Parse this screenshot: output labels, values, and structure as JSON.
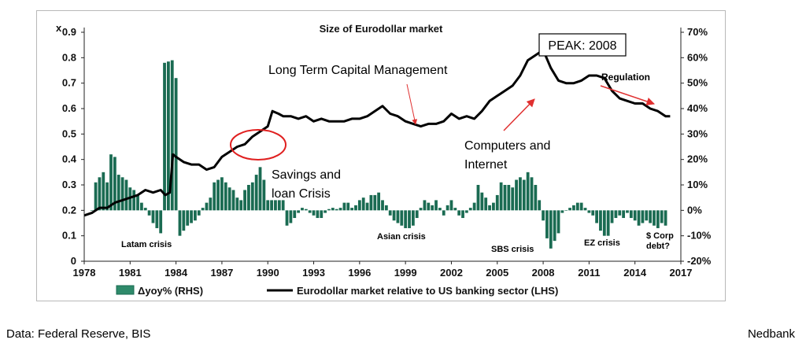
{
  "chart_data": {
    "type": "bar+line",
    "title": "Size of Eurodollar market",
    "left_axis": {
      "unit_label": "x",
      "ylim": [
        0,
        0.9
      ],
      "ticks": [
        "0",
        "0.1",
        "0.2",
        "0.3",
        "0.4",
        "0.5",
        "0.6",
        "0.7",
        "0.8",
        "0.9"
      ]
    },
    "right_axis": {
      "ylim": [
        -20,
        70
      ],
      "ticks": [
        "-20%",
        "-10%",
        "0%",
        "10%",
        "20%",
        "30%",
        "40%",
        "50%",
        "60%",
        "70%"
      ]
    },
    "x_axis": {
      "xlim": [
        1978,
        2017
      ],
      "ticks": [
        "1978",
        "1981",
        "1984",
        "1987",
        "1990",
        "1993",
        "1996",
        "1999",
        "2002",
        "2005",
        "2008",
        "2011",
        "2014",
        "2017"
      ]
    },
    "legend": {
      "placement": "bottom",
      "items": [
        "Δyoy% (RHS)",
        "Eurodollar market relative to US banking sector (LHS)"
      ]
    },
    "series": [
      {
        "name": "Eurodollar market relative to US banking sector (LHS)",
        "type": "line",
        "axis": "left",
        "color": "#000000",
        "points": [
          [
            1978.0,
            0.18
          ],
          [
            1978.5,
            0.19
          ],
          [
            1979.0,
            0.21
          ],
          [
            1979.5,
            0.21
          ],
          [
            1980.0,
            0.23
          ],
          [
            1980.5,
            0.24
          ],
          [
            1981.0,
            0.25
          ],
          [
            1981.5,
            0.26
          ],
          [
            1982.0,
            0.28
          ],
          [
            1982.5,
            0.27
          ],
          [
            1983.0,
            0.28
          ],
          [
            1983.3,
            0.26
          ],
          [
            1983.6,
            0.27
          ],
          [
            1983.8,
            0.42
          ],
          [
            1984.0,
            0.41
          ],
          [
            1984.5,
            0.39
          ],
          [
            1985.0,
            0.38
          ],
          [
            1985.5,
            0.38
          ],
          [
            1986.0,
            0.36
          ],
          [
            1986.5,
            0.37
          ],
          [
            1987.0,
            0.41
          ],
          [
            1987.5,
            0.43
          ],
          [
            1988.0,
            0.45
          ],
          [
            1988.5,
            0.46
          ],
          [
            1989.0,
            0.49
          ],
          [
            1989.5,
            0.51
          ],
          [
            1990.0,
            0.53
          ],
          [
            1990.3,
            0.59
          ],
          [
            1990.7,
            0.58
          ],
          [
            1991.0,
            0.57
          ],
          [
            1991.5,
            0.57
          ],
          [
            1992.0,
            0.56
          ],
          [
            1992.5,
            0.57
          ],
          [
            1993.0,
            0.55
          ],
          [
            1993.5,
            0.56
          ],
          [
            1994.0,
            0.55
          ],
          [
            1995.0,
            0.55
          ],
          [
            1995.5,
            0.56
          ],
          [
            1996.0,
            0.56
          ],
          [
            1996.5,
            0.57
          ],
          [
            1997.0,
            0.59
          ],
          [
            1997.5,
            0.61
          ],
          [
            1998.0,
            0.58
          ],
          [
            1998.5,
            0.57
          ],
          [
            1999.0,
            0.55
          ],
          [
            1999.5,
            0.54
          ],
          [
            2000.0,
            0.53
          ],
          [
            2000.5,
            0.54
          ],
          [
            2001.0,
            0.54
          ],
          [
            2001.5,
            0.55
          ],
          [
            2002.0,
            0.58
          ],
          [
            2002.5,
            0.56
          ],
          [
            2003.0,
            0.57
          ],
          [
            2003.5,
            0.56
          ],
          [
            2004.0,
            0.59
          ],
          [
            2004.5,
            0.63
          ],
          [
            2005.0,
            0.65
          ],
          [
            2005.5,
            0.67
          ],
          [
            2006.0,
            0.69
          ],
          [
            2006.5,
            0.73
          ],
          [
            2007.0,
            0.79
          ],
          [
            2007.5,
            0.81
          ],
          [
            2008.0,
            0.83
          ],
          [
            2008.5,
            0.76
          ],
          [
            2009.0,
            0.71
          ],
          [
            2009.5,
            0.7
          ],
          [
            2010.0,
            0.7
          ],
          [
            2010.5,
            0.71
          ],
          [
            2011.0,
            0.73
          ],
          [
            2011.5,
            0.73
          ],
          [
            2012.0,
            0.72
          ],
          [
            2012.5,
            0.67
          ],
          [
            2013.0,
            0.64
          ],
          [
            2013.5,
            0.63
          ],
          [
            2014.0,
            0.62
          ],
          [
            2014.5,
            0.62
          ],
          [
            2015.0,
            0.6
          ],
          [
            2015.5,
            0.59
          ],
          [
            2016.0,
            0.57
          ],
          [
            2016.3,
            0.57
          ]
        ]
      },
      {
        "name": "Δyoy% (RHS)",
        "type": "bar",
        "axis": "right",
        "color": "#1a6b52",
        "points": [
          [
            1978.5,
            0
          ],
          [
            1978.75,
            11
          ],
          [
            1979.0,
            13
          ],
          [
            1979.25,
            15
          ],
          [
            1979.5,
            11
          ],
          [
            1979.75,
            22
          ],
          [
            1980.0,
            21
          ],
          [
            1980.25,
            14
          ],
          [
            1980.5,
            13
          ],
          [
            1980.75,
            12
          ],
          [
            1981.0,
            9
          ],
          [
            1981.25,
            8
          ],
          [
            1981.5,
            6
          ],
          [
            1981.75,
            3
          ],
          [
            1982.0,
            1
          ],
          [
            1982.25,
            -2
          ],
          [
            1982.5,
            -5
          ],
          [
            1982.75,
            -7
          ],
          [
            1983.0,
            -9
          ],
          [
            1983.25,
            58
          ],
          [
            1983.5,
            58.5
          ],
          [
            1983.75,
            59
          ],
          [
            1984.0,
            52
          ],
          [
            1984.25,
            -10
          ],
          [
            1984.5,
            -8
          ],
          [
            1984.75,
            -6
          ],
          [
            1985.0,
            -5
          ],
          [
            1985.25,
            -4
          ],
          [
            1985.5,
            -2
          ],
          [
            1985.75,
            1
          ],
          [
            1986.0,
            3
          ],
          [
            1986.25,
            5
          ],
          [
            1986.5,
            11
          ],
          [
            1986.75,
            12
          ],
          [
            1987.0,
            13
          ],
          [
            1987.25,
            11
          ],
          [
            1987.5,
            9
          ],
          [
            1987.75,
            8
          ],
          [
            1988.0,
            5
          ],
          [
            1988.25,
            4
          ],
          [
            1988.5,
            8
          ],
          [
            1988.75,
            10
          ],
          [
            1989.0,
            11
          ],
          [
            1989.25,
            14
          ],
          [
            1989.5,
            17
          ],
          [
            1989.75,
            12
          ],
          [
            1990.0,
            4
          ],
          [
            1990.25,
            4
          ],
          [
            1990.5,
            4
          ],
          [
            1990.75,
            4
          ],
          [
            1991.0,
            4
          ],
          [
            1991.25,
            -6
          ],
          [
            1991.5,
            -5
          ],
          [
            1991.75,
            -3
          ],
          [
            1992.0,
            -1
          ],
          [
            1992.25,
            1
          ],
          [
            1992.5,
            0.5
          ],
          [
            1992.75,
            -1
          ],
          [
            1993.0,
            -2
          ],
          [
            1993.25,
            -3
          ],
          [
            1993.5,
            -3
          ],
          [
            1993.75,
            -1
          ],
          [
            1994.0,
            0.5
          ],
          [
            1994.25,
            1
          ],
          [
            1994.5,
            0.5
          ],
          [
            1994.75,
            1
          ],
          [
            1995.0,
            3
          ],
          [
            1995.25,
            3
          ],
          [
            1995.5,
            1
          ],
          [
            1995.75,
            2
          ],
          [
            1996.0,
            4
          ],
          [
            1996.25,
            5
          ],
          [
            1996.5,
            3
          ],
          [
            1996.75,
            6
          ],
          [
            1997.0,
            6
          ],
          [
            1997.25,
            7
          ],
          [
            1997.5,
            4
          ],
          [
            1997.75,
            2
          ],
          [
            1998.0,
            -2
          ],
          [
            1998.25,
            -4
          ],
          [
            1998.5,
            -5
          ],
          [
            1998.75,
            -6
          ],
          [
            1999.0,
            -7
          ],
          [
            1999.25,
            -7
          ],
          [
            1999.5,
            -6
          ],
          [
            1999.75,
            -3
          ],
          [
            2000.0,
            1
          ],
          [
            2000.25,
            4
          ],
          [
            2000.5,
            3
          ],
          [
            2000.75,
            2
          ],
          [
            2001.0,
            4
          ],
          [
            2001.25,
            1
          ],
          [
            2001.5,
            -2
          ],
          [
            2001.75,
            2
          ],
          [
            2002.0,
            4
          ],
          [
            2002.25,
            1
          ],
          [
            2002.5,
            -2
          ],
          [
            2002.75,
            -3
          ],
          [
            2003.0,
            -1
          ],
          [
            2003.25,
            1
          ],
          [
            2003.5,
            3
          ],
          [
            2003.75,
            10
          ],
          [
            2004.0,
            7
          ],
          [
            2004.25,
            5
          ],
          [
            2004.5,
            2
          ],
          [
            2004.75,
            3
          ],
          [
            2005.0,
            6
          ],
          [
            2005.25,
            11
          ],
          [
            2005.5,
            10
          ],
          [
            2005.75,
            10
          ],
          [
            2006.0,
            9
          ],
          [
            2006.25,
            12
          ],
          [
            2006.5,
            13
          ],
          [
            2006.75,
            12
          ],
          [
            2007.0,
            15
          ],
          [
            2007.25,
            13
          ],
          [
            2007.5,
            10
          ],
          [
            2007.75,
            4
          ],
          [
            2008.0,
            -4
          ],
          [
            2008.25,
            -11
          ],
          [
            2008.5,
            -15
          ],
          [
            2008.75,
            -12
          ],
          [
            2009.0,
            -9
          ],
          [
            2009.25,
            -1
          ],
          [
            2009.5,
            0
          ],
          [
            2009.75,
            1
          ],
          [
            2010.0,
            2
          ],
          [
            2010.25,
            3
          ],
          [
            2010.5,
            3
          ],
          [
            2010.75,
            1
          ],
          [
            2011.0,
            -1
          ],
          [
            2011.25,
            -2
          ],
          [
            2011.5,
            -5
          ],
          [
            2011.75,
            -8
          ],
          [
            2012.0,
            -10
          ],
          [
            2012.25,
            -10
          ],
          [
            2012.5,
            -5
          ],
          [
            2012.75,
            -3
          ],
          [
            2013.0,
            -2
          ],
          [
            2013.25,
            -3
          ],
          [
            2013.5,
            -1
          ],
          [
            2013.75,
            -3
          ],
          [
            2014.0,
            -4
          ],
          [
            2014.25,
            -6
          ],
          [
            2014.5,
            -5
          ],
          [
            2014.75,
            -4
          ],
          [
            2015.0,
            -5
          ],
          [
            2015.25,
            -6
          ],
          [
            2015.5,
            -7
          ],
          [
            2015.75,
            -5
          ],
          [
            2016.0,
            -6
          ]
        ]
      }
    ],
    "annotations": {
      "peak": "PEAK: 2008",
      "ltcm": "Long Term Capital Management",
      "regulation": "Regulation",
      "computers_1": "Computers and",
      "computers_2": "Internet",
      "savings_1": "Savings and",
      "savings_2": "loan Crisis",
      "latam": "Latam crisis",
      "asian": "Asian crisis",
      "sbs": "SBS crisis",
      "ez": "EZ crisis",
      "corp_1": "$ Corp",
      "corp_2": "debt?"
    },
    "colors": {
      "line": "#000000",
      "bars": "#1a6b52",
      "arrows": "#e03030",
      "circle": "#e02020"
    }
  },
  "footer": {
    "source": "Data: Federal Reserve, BIS",
    "brand": "Nedbank"
  }
}
